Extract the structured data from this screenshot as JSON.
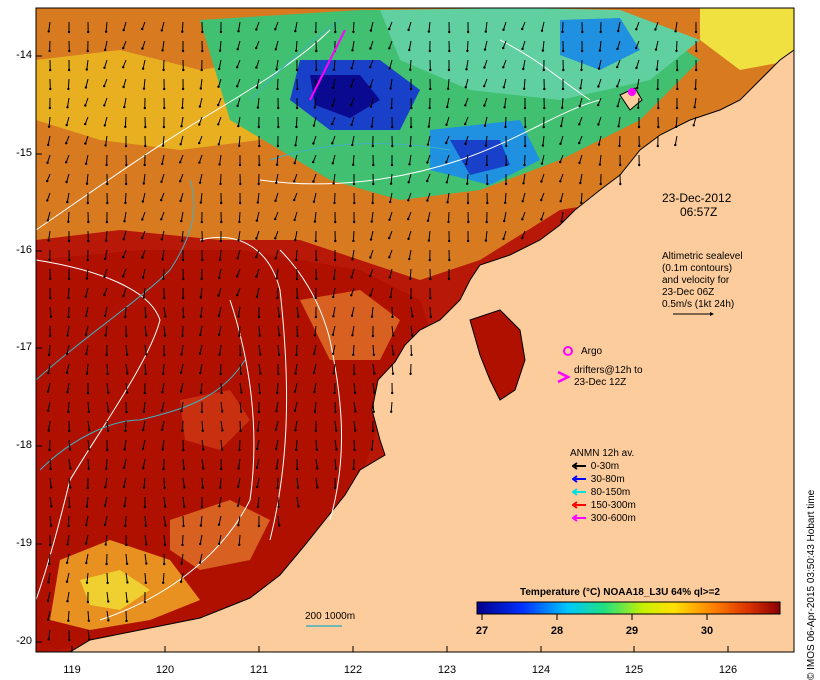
{
  "map": {
    "date": "23-Dec-2012",
    "time": "06:57Z",
    "y_ticks": [
      "-14",
      "-15",
      "-16",
      "-17",
      "-18",
      "-19",
      "-20"
    ],
    "x_ticks": [
      "119",
      "120",
      "121",
      "122",
      "123",
      "124",
      "125",
      "126"
    ],
    "altimetry_note": [
      "Altimetric sealevel",
      "(0.1m contours)",
      "and velocity for",
      "23-Dec 06Z",
      "0.5m/s (1kt 24h)"
    ],
    "argo_label": "Argo",
    "drifters_label": [
      "drifters@12h to",
      "23-Dec 12Z"
    ],
    "anmn_title": "ANMN 12h av.",
    "anmn_legend": [
      {
        "label": "0-30m",
        "color": "#000000"
      },
      {
        "label": "30-80m",
        "color": "#0000ff"
      },
      {
        "label": "80-150m",
        "color": "#00e0e0"
      },
      {
        "label": "150-300m",
        "color": "#ff0000"
      },
      {
        "label": "300-600m",
        "color": "#ff00ff"
      }
    ],
    "colorbar_title": "Temperature (°C) NOAA18_L3U 64% ql>=2",
    "colorbar_ticks": [
      "27",
      "28",
      "29",
      "30"
    ],
    "bathy_label": "200  1000m",
    "credit": "© IMOS 06-Apr-2015 03:50:43 Hobart time",
    "colors": {
      "land": "#fccc9c",
      "warm": "#a00000",
      "cool": "#0000a0",
      "argo": "#ff00ff"
    }
  }
}
